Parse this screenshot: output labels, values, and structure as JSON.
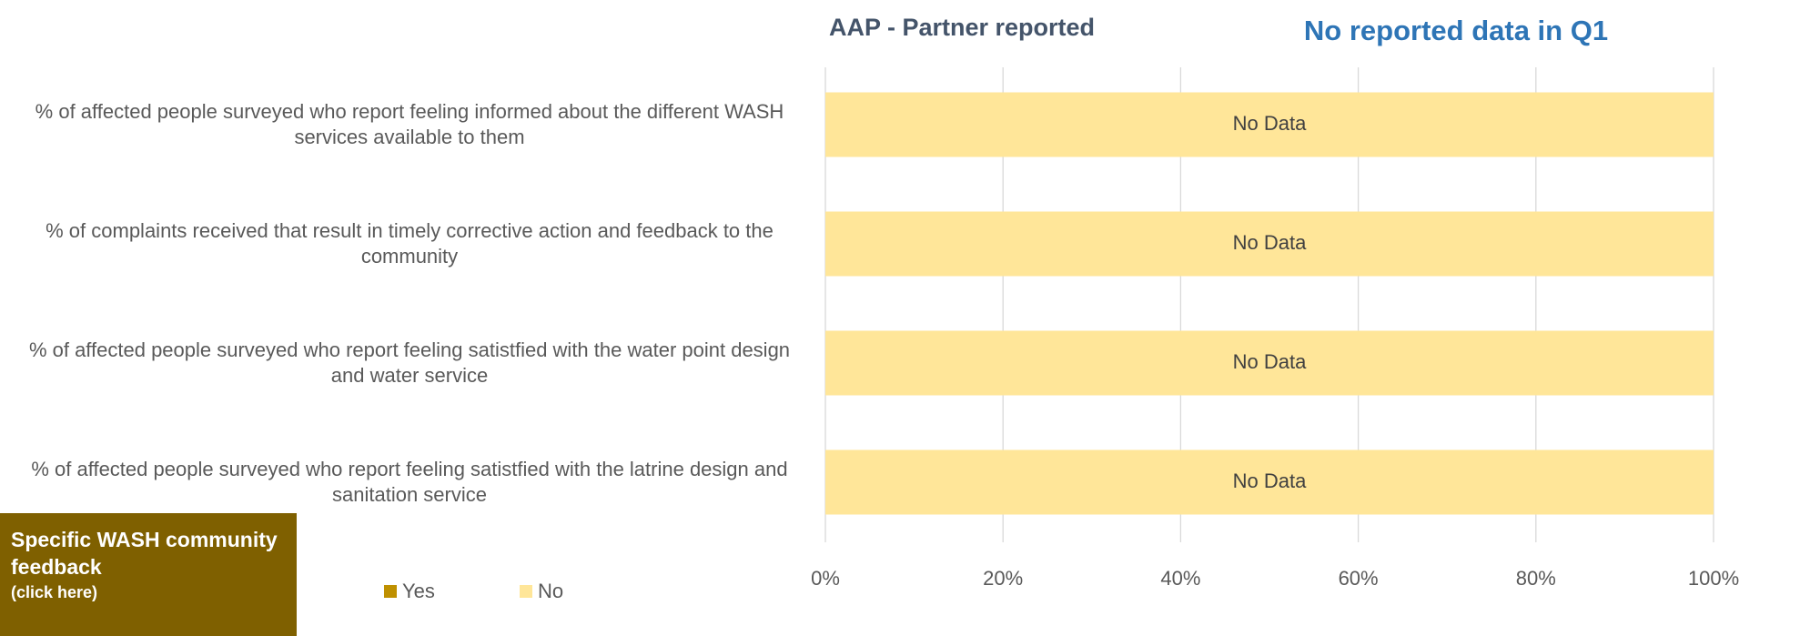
{
  "chart_data": {
    "type": "stacked_barh",
    "title": "AAP - Partner reported",
    "annotation": "No reported data in Q1",
    "categories": [
      "% of affected people surveyed who report feeling informed about the different WASH services available to them",
      "% of complaints received that result in timely corrective action and feedback to the community",
      "% of affected people surveyed who report feeling satistfied with the water point design and water service",
      "% of affected people surveyed who report feeling satistfied with the latrine design and sanitation service"
    ],
    "series": [
      {
        "name": "Yes",
        "color": "#bf9000",
        "values": [
          0,
          0,
          0,
          0
        ]
      },
      {
        "name": "No",
        "color": "#ffe699",
        "values": [
          100,
          100,
          100,
          100
        ],
        "value_labels": [
          "No Data",
          "No Data",
          "No Data",
          "No Data"
        ]
      }
    ],
    "xlim": [
      0,
      100
    ],
    "xticks": [
      {
        "value": 0,
        "label": "0%"
      },
      {
        "value": 20,
        "label": "20%"
      },
      {
        "value": 40,
        "label": "40%"
      },
      {
        "value": 60,
        "label": "60%"
      },
      {
        "value": 80,
        "label": "80%"
      },
      {
        "value": 100,
        "label": "100%"
      }
    ],
    "grid": true,
    "legend": "bottom"
  },
  "button": {
    "title": "Specific WASH community feedback",
    "subtitle": "(click here)"
  }
}
